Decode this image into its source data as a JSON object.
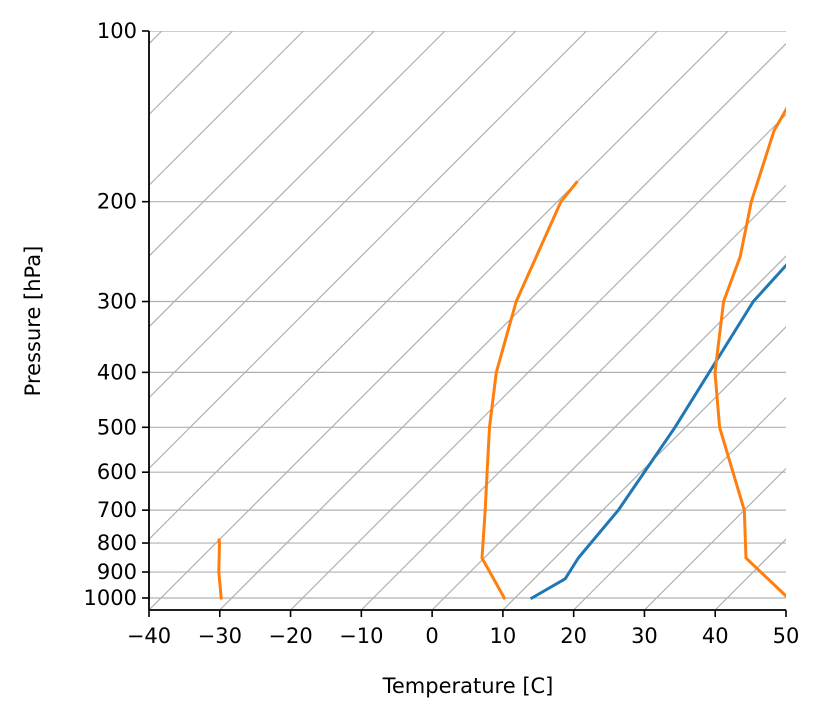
{
  "chart_data": {
    "type": "line",
    "title": "",
    "xlabel": "Temperature [C]",
    "ylabel": "Pressure [hPa]",
    "xlim": [
      -40,
      50
    ],
    "ylim": [
      1050,
      100
    ],
    "y_scale": "log",
    "grid": true,
    "x_ticks": [
      -40,
      -30,
      -20,
      -10,
      0,
      10,
      20,
      30,
      40,
      50
    ],
    "x_tick_labels": [
      "−40",
      "−30",
      "−20",
      "−10",
      "0",
      "10",
      "20",
      "30",
      "40",
      "50"
    ],
    "y_ticks": [
      100,
      200,
      300,
      400,
      500,
      600,
      700,
      800,
      900,
      1000
    ],
    "y_tick_labels": [
      "100",
      "200",
      "300",
      "400",
      "500",
      "600",
      "700",
      "800",
      "900",
      "1000"
    ],
    "skew_lines_t0": [
      -140,
      -130,
      -120,
      -110,
      -100,
      -90,
      -80,
      -70,
      -60,
      -50,
      -40,
      -30,
      -20,
      -10,
      0,
      10,
      20,
      30,
      40,
      50
    ],
    "skew_lines_color": "#b0b0b0",
    "grid_color": "#b0b0b0",
    "series": [
      {
        "color": "#1f77b4",
        "points": [
          {
            "p": 1000,
            "t": 12.4
          },
          {
            "p": 925,
            "t": 14.4
          },
          {
            "p": 850,
            "t": 13.3
          },
          {
            "p": 700,
            "t": 12.2
          },
          {
            "p": 500,
            "t": 8.5
          },
          {
            "p": 300,
            "t": 1.8
          },
          {
            "p": 250,
            "t": 1.2
          },
          {
            "p": 200,
            "t": 4.2
          },
          {
            "p": 150,
            "t": 10.0
          },
          {
            "p": 100,
            "t": 19.0
          }
        ]
      },
      {
        "color": "#ff7f0e",
        "points": [
          {
            "p": 1000,
            "t": 48.6
          },
          {
            "p": 850,
            "t": 37.0
          },
          {
            "p": 700,
            "t": 30.0
          },
          {
            "p": 500,
            "t": 14.8
          },
          {
            "p": 400,
            "t": 6.4
          },
          {
            "p": 300,
            "t": -2.4
          },
          {
            "p": 250,
            "t": -6.4
          },
          {
            "p": 200,
            "t": -12.6
          },
          {
            "p": 150,
            "t": -19.4
          },
          {
            "p": 100,
            "t": -25.5
          }
        ]
      },
      {
        "color": "#ff7f0e",
        "points": [
          {
            "p": 1000,
            "t": 8.5
          },
          {
            "p": 850,
            "t": -0.3
          },
          {
            "p": 700,
            "t": -6.6
          },
          {
            "p": 600,
            "t": -11.7
          },
          {
            "p": 500,
            "t": -17.7
          },
          {
            "p": 400,
            "t": -24.5
          },
          {
            "p": 300,
            "t": -31.7
          },
          {
            "p": 250,
            "t": -35.2
          },
          {
            "p": 200,
            "t": -39.5
          },
          {
            "p": 185,
            "t": -40.0
          }
        ]
      },
      {
        "color": "#ff7f0e",
        "points": [
          {
            "p": 1000,
            "t": -31.5
          },
          {
            "p": 900,
            "t": -35.5
          },
          {
            "p": 800,
            "t": -39.5
          },
          {
            "p": 790,
            "t": -40.0
          }
        ]
      }
    ]
  }
}
